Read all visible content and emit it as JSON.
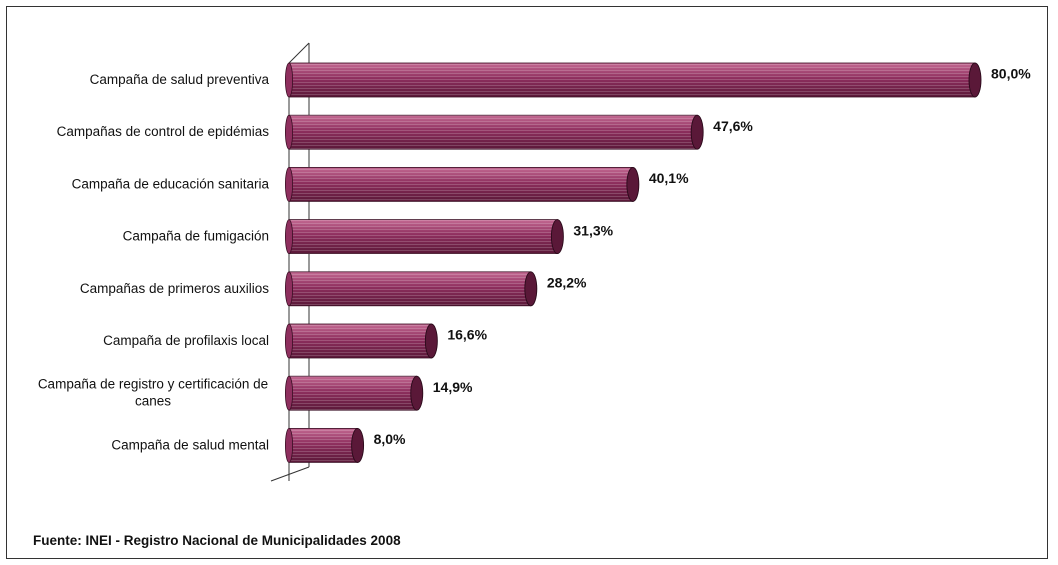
{
  "chart_data": {
    "type": "bar",
    "orientation": "horizontal",
    "categories": [
      "Campaña de salud preventiva",
      "Campañas de control de epidémias",
      "Campaña de educación sanitaria",
      "Campaña de fumigación",
      "Campañas de primeros auxilios",
      "Campaña de profilaxis local",
      "Campaña de registro y certificación de canes",
      "Campaña de salud mental"
    ],
    "category_lines": [
      [
        "Campaña de salud preventiva"
      ],
      [
        "Campañas de control de epidémias"
      ],
      [
        "Campaña de educación sanitaria"
      ],
      [
        "Campaña de fumigación"
      ],
      [
        "Campañas de primeros auxilios"
      ],
      [
        "Campaña de profilaxis local"
      ],
      [
        "Campaña de registro y certificación de",
        "canes"
      ],
      [
        "Campaña de salud mental"
      ]
    ],
    "values": [
      80.0,
      47.6,
      40.1,
      31.3,
      28.2,
      16.6,
      14.9,
      8.0
    ],
    "value_labels": [
      "80,0%",
      "47,6%",
      "40,1%",
      "31,3%",
      "28,2%",
      "16,6%",
      "14,9%",
      "8,0%"
    ],
    "bar_color": "#8e2f5e",
    "bar_dark": "#5a1838",
    "bar_light": "#c46a93",
    "xlim": [
      0,
      80
    ],
    "grid": false,
    "legend": "none"
  },
  "source": "Fuente: INEI - Registro Nacional de Municipalidades 2008"
}
